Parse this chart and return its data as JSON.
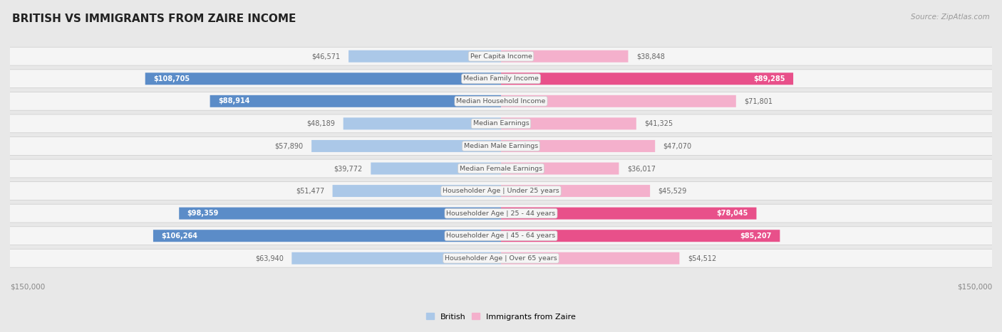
{
  "title": "BRITISH VS IMMIGRANTS FROM ZAIRE INCOME",
  "source": "Source: ZipAtlas.com",
  "categories": [
    "Per Capita Income",
    "Median Family Income",
    "Median Household Income",
    "Median Earnings",
    "Median Male Earnings",
    "Median Female Earnings",
    "Householder Age | Under 25 years",
    "Householder Age | 25 - 44 years",
    "Householder Age | 45 - 64 years",
    "Householder Age | Over 65 years"
  ],
  "british_values": [
    46571,
    108705,
    88914,
    48189,
    57890,
    39772,
    51477,
    98359,
    106264,
    63940
  ],
  "zaire_values": [
    38848,
    89285,
    71801,
    41325,
    47070,
    36017,
    45529,
    78045,
    85207,
    54512
  ],
  "british_labels": [
    "$46,571",
    "$108,705",
    "$88,914",
    "$48,189",
    "$57,890",
    "$39,772",
    "$51,477",
    "$98,359",
    "$106,264",
    "$63,940"
  ],
  "zaire_labels": [
    "$38,848",
    "$89,285",
    "$71,801",
    "$41,325",
    "$47,070",
    "$36,017",
    "$45,529",
    "$78,045",
    "$85,207",
    "$54,512"
  ],
  "british_color_light": "#abc8e8",
  "british_color_dark": "#5b8cc8",
  "zaire_color_light": "#f4b0cc",
  "zaire_color_dark": "#e8508a",
  "max_value": 150000,
  "page_bg_color": "#e8e8e8",
  "row_bg_color": "#f5f5f5",
  "row_border_color": "#cccccc",
  "label_bg_color": "#f0f0f0",
  "british_dark_threshold": 75000,
  "zaire_dark_threshold": 75000,
  "legend_british": "British",
  "legend_zaire": "Immigrants from Zaire",
  "axis_label_color": "#888888",
  "value_label_color_outside": "#666666",
  "value_label_color_inside": "#ffffff"
}
